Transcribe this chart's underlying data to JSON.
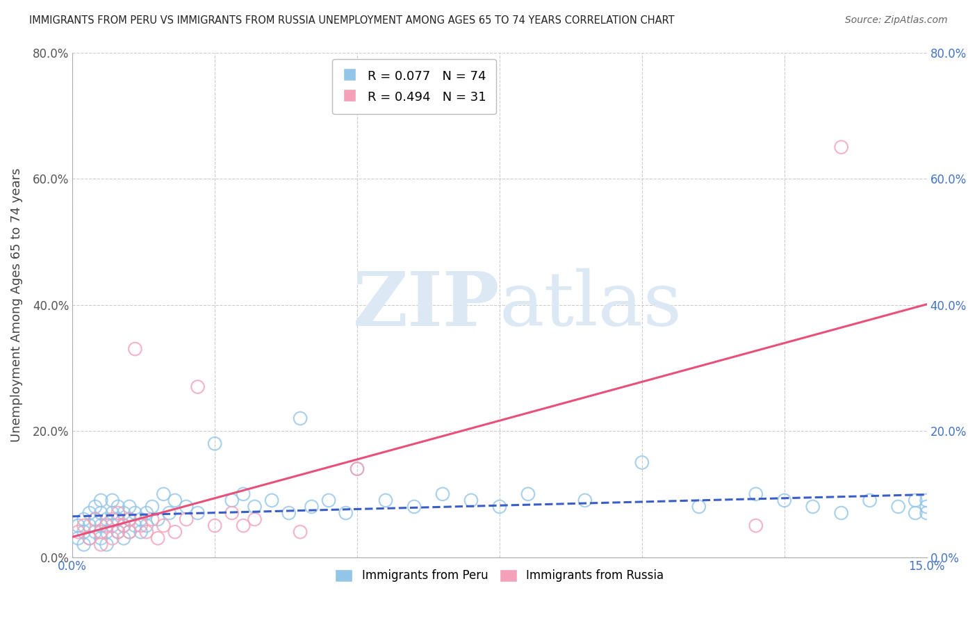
{
  "title": "IMMIGRANTS FROM PERU VS IMMIGRANTS FROM RUSSIA UNEMPLOYMENT AMONG AGES 65 TO 74 YEARS CORRELATION CHART",
  "source": "Source: ZipAtlas.com",
  "ylabel": "Unemployment Among Ages 65 to 74 years",
  "xlim": [
    0.0,
    0.15
  ],
  "ylim": [
    0.0,
    0.8
  ],
  "xticks": [
    0.0,
    0.025,
    0.05,
    0.075,
    0.1,
    0.125,
    0.15
  ],
  "yticks": [
    0.0,
    0.2,
    0.4,
    0.6,
    0.8
  ],
  "xlim_labels_only": [
    "0.0%",
    "15.0%"
  ],
  "ytick_labels": [
    "0.0%",
    "20.0%",
    "40.0%",
    "60.0%",
    "80.0%"
  ],
  "peru_R": 0.077,
  "peru_N": 74,
  "russia_R": 0.494,
  "russia_N": 31,
  "peru_color": "#92c5e8",
  "russia_color": "#f4a0b8",
  "peru_line_color": "#3a5dc8",
  "russia_line_color": "#e8507a",
  "background_color": "#ffffff",
  "grid_color": "#cccccc",
  "watermark_zip": "ZIP",
  "watermark_atlas": "atlas",
  "watermark_color": "#dce8f4",
  "peru_x": [
    0.001,
    0.001,
    0.002,
    0.002,
    0.002,
    0.003,
    0.003,
    0.003,
    0.004,
    0.004,
    0.004,
    0.005,
    0.005,
    0.005,
    0.005,
    0.006,
    0.006,
    0.006,
    0.007,
    0.007,
    0.007,
    0.008,
    0.008,
    0.008,
    0.009,
    0.009,
    0.009,
    0.01,
    0.01,
    0.01,
    0.011,
    0.011,
    0.012,
    0.012,
    0.013,
    0.013,
    0.014,
    0.015,
    0.016,
    0.017,
    0.018,
    0.02,
    0.022,
    0.025,
    0.028,
    0.03,
    0.032,
    0.035,
    0.038,
    0.04,
    0.042,
    0.045,
    0.048,
    0.05,
    0.055,
    0.06,
    0.065,
    0.07,
    0.075,
    0.08,
    0.09,
    0.1,
    0.11,
    0.12,
    0.125,
    0.13,
    0.135,
    0.14,
    0.145,
    0.148,
    0.15,
    0.15,
    0.15,
    0.148
  ],
  "peru_y": [
    0.05,
    0.03,
    0.04,
    0.06,
    0.02,
    0.05,
    0.03,
    0.07,
    0.04,
    0.06,
    0.08,
    0.03,
    0.05,
    0.07,
    0.09,
    0.04,
    0.06,
    0.02,
    0.05,
    0.07,
    0.09,
    0.04,
    0.06,
    0.08,
    0.05,
    0.03,
    0.07,
    0.06,
    0.04,
    0.08,
    0.05,
    0.07,
    0.06,
    0.04,
    0.07,
    0.05,
    0.08,
    0.06,
    0.1,
    0.07,
    0.09,
    0.08,
    0.07,
    0.18,
    0.09,
    0.1,
    0.08,
    0.09,
    0.07,
    0.22,
    0.08,
    0.09,
    0.07,
    0.14,
    0.09,
    0.08,
    0.1,
    0.09,
    0.08,
    0.1,
    0.09,
    0.15,
    0.08,
    0.1,
    0.09,
    0.08,
    0.07,
    0.09,
    0.08,
    0.07,
    0.09,
    0.08,
    0.07,
    0.09
  ],
  "russia_x": [
    0.001,
    0.002,
    0.003,
    0.004,
    0.005,
    0.005,
    0.006,
    0.007,
    0.007,
    0.008,
    0.008,
    0.009,
    0.01,
    0.01,
    0.011,
    0.012,
    0.013,
    0.014,
    0.015,
    0.016,
    0.018,
    0.02,
    0.022,
    0.025,
    0.028,
    0.03,
    0.032,
    0.04,
    0.05,
    0.12,
    0.135
  ],
  "russia_y": [
    0.04,
    0.05,
    0.03,
    0.06,
    0.04,
    0.02,
    0.05,
    0.03,
    0.06,
    0.04,
    0.07,
    0.05,
    0.04,
    0.06,
    0.33,
    0.05,
    0.04,
    0.06,
    0.03,
    0.05,
    0.04,
    0.06,
    0.27,
    0.05,
    0.07,
    0.05,
    0.06,
    0.04,
    0.14,
    0.05,
    0.65
  ]
}
